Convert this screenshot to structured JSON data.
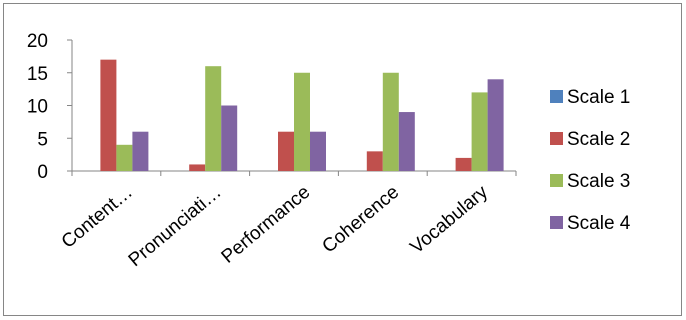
{
  "chart_data": {
    "type": "bar",
    "categories": [
      "Content…",
      "Pronunciati…",
      "Performance",
      "Coherence",
      "Vocabulary"
    ],
    "series": [
      {
        "name": "Scale 1",
        "color": "#4F81BD",
        "values": [
          0,
          0,
          0,
          0,
          0
        ]
      },
      {
        "name": "Scale 2",
        "color": "#C0504D",
        "values": [
          17,
          1,
          6,
          3,
          2
        ]
      },
      {
        "name": "Scale 3",
        "color": "#9BBB59",
        "values": [
          4,
          16,
          15,
          15,
          12
        ]
      },
      {
        "name": "Scale 4",
        "color": "#8064A2",
        "values": [
          6,
          10,
          6,
          9,
          14
        ]
      }
    ],
    "ylim": [
      0,
      20
    ],
    "yticks": [
      "0",
      "5",
      "10",
      "15",
      "20"
    ],
    "grid": false,
    "legend_position": "right"
  }
}
